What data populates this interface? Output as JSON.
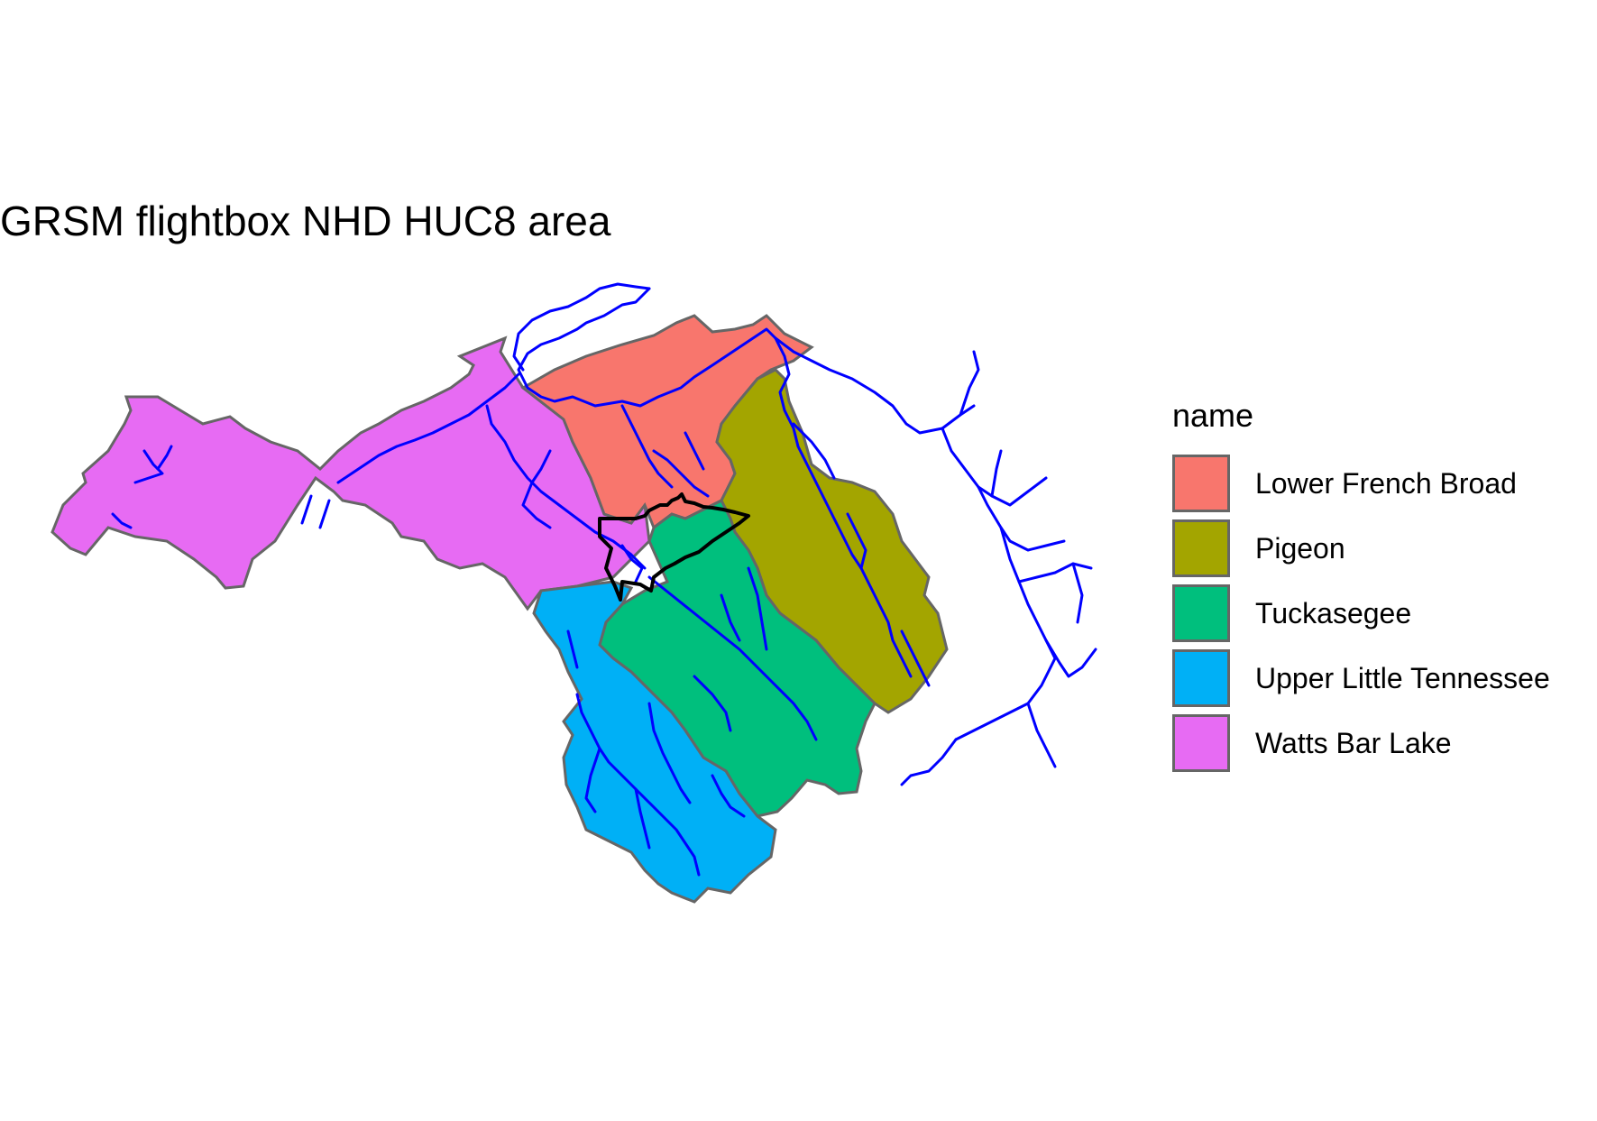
{
  "title": "GRSM flightbox NHD HUC8 area",
  "legend": {
    "title": "name",
    "items": [
      {
        "label": "Lower French Broad",
        "color": "#F8766D"
      },
      {
        "label": "Pigeon",
        "color": "#A3A500"
      },
      {
        "label": "Tuckasegee",
        "color": "#00BF7D"
      },
      {
        "label": "Upper Little Tennessee",
        "color": "#00B0F6"
      },
      {
        "label": "Watts Bar Lake",
        "color": "#E76BF3"
      }
    ]
  },
  "styles": {
    "outline_color": "#666666",
    "river_color": "#0000FF",
    "flightbox_color": "#000000"
  }
}
